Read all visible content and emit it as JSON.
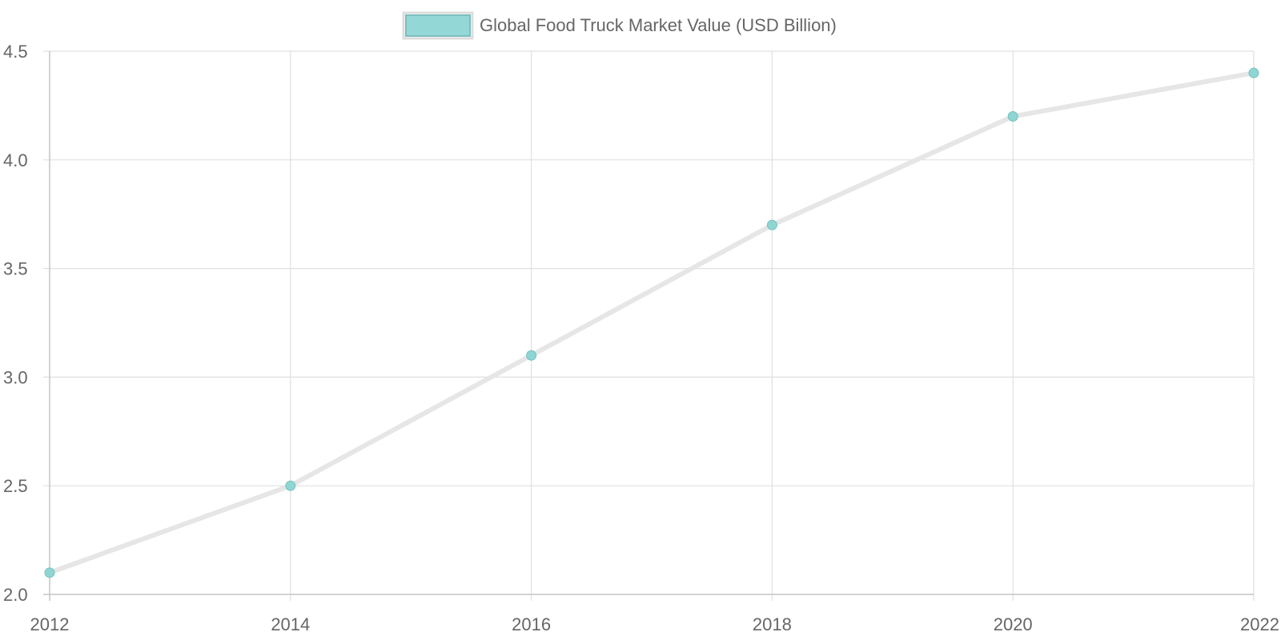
{
  "chart_data": {
    "type": "line",
    "x": [
      2012,
      2014,
      2016,
      2018,
      2020,
      2022
    ],
    "series": [
      {
        "name": "Global Food Truck Market Value (USD Billion)",
        "values": [
          2.1,
          2.5,
          3.1,
          3.7,
          4.2,
          4.4
        ]
      }
    ],
    "x_ticks": [
      "2012",
      "2014",
      "2016",
      "2018",
      "2020",
      "2022"
    ],
    "y_ticks": [
      "2.0",
      "2.5",
      "3.0",
      "3.5",
      "4.0",
      "4.5"
    ],
    "xlim": [
      2012,
      2022
    ],
    "ylim": [
      2.0,
      4.5
    ],
    "grid": true,
    "legend_position": "top-center",
    "colors": {
      "line": "#e6e6e6",
      "point_fill": "#8fd5d3",
      "point_stroke": "#74c2bf",
      "legend_fill": "#93d8d6",
      "legend_stroke": "#7cbfbe",
      "legend_border": "#dddddd",
      "grid": "#e0e0e0",
      "axis": "#c8c8c8",
      "text": "#666666"
    }
  }
}
